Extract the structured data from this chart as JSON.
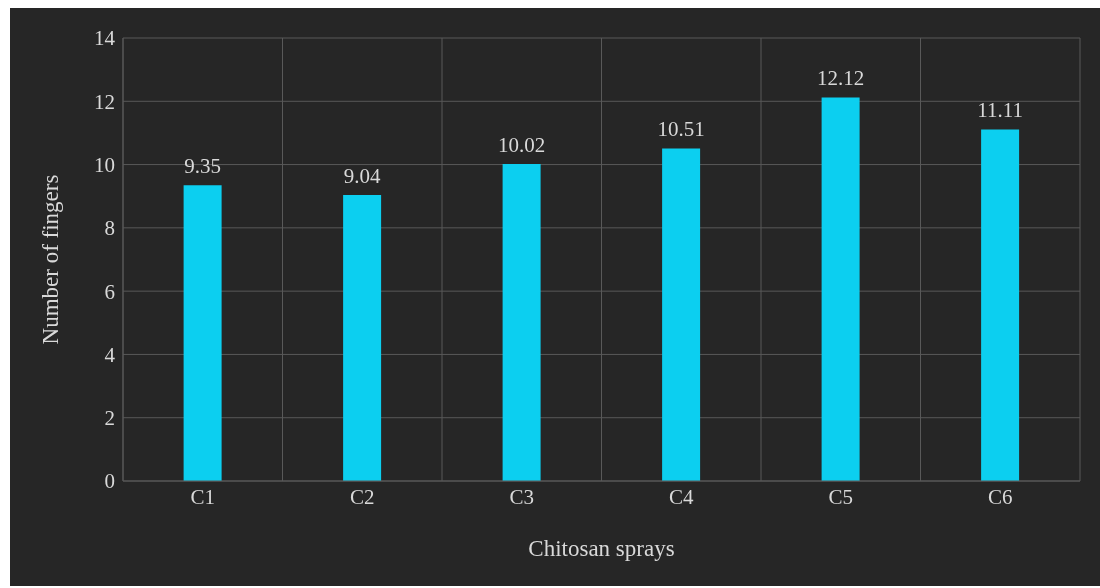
{
  "chart_data": {
    "type": "bar",
    "xlabel": "Chitosan sprays",
    "ylabel": "Number of fingers",
    "categories": [
      "C1",
      "C2",
      "C3",
      "C4",
      "C5",
      "C6"
    ],
    "series": [
      {
        "color": "#0ccff0",
        "values": [
          9.35,
          9.04,
          10.02,
          10.51,
          12.12,
          11.11
        ]
      }
    ],
    "ylim": [
      0,
      14
    ],
    "yticks": [
      0,
      2,
      4,
      6,
      8,
      10,
      12,
      14
    ],
    "grid": true,
    "data_labels": true
  }
}
